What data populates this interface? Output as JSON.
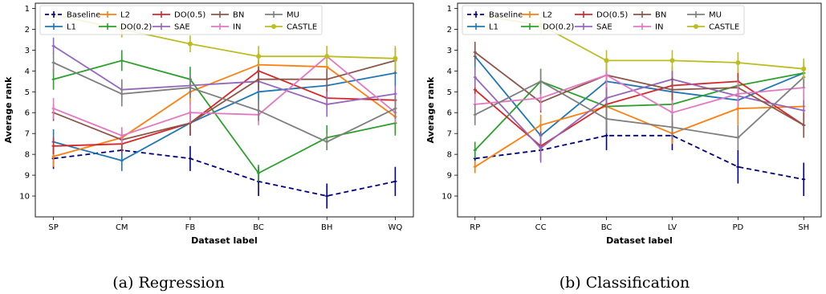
{
  "chart_data": [
    {
      "type": "line",
      "caption": "(a) Regression",
      "categories": [
        "SP",
        "CM",
        "FB",
        "BC",
        "BH",
        "WQ"
      ],
      "xlabel": "Dataset label",
      "ylabel": "Average rank",
      "ylim": [
        1,
        11
      ],
      "yticks": [
        1,
        2,
        3,
        4,
        5,
        6,
        7,
        8,
        9,
        10
      ],
      "y_inverted": true,
      "legend_position": "top",
      "series": [
        {
          "name": "Baseline",
          "color": "#000080",
          "dashed": true,
          "values": [
            8.2,
            7.8,
            8.2,
            9.3,
            10.0,
            9.3
          ],
          "err": [
            0.5,
            0.4,
            0.6,
            0.7,
            0.6,
            0.7
          ]
        },
        {
          "name": "L1",
          "color": "#1f77b4",
          "values": [
            7.4,
            8.3,
            6.5,
            5.0,
            4.7,
            4.1
          ],
          "err": [
            0.6,
            0.5,
            0.6,
            0.6,
            0.5,
            0.6
          ]
        },
        {
          "name": "L2",
          "color": "#ff7f0e",
          "values": [
            8.1,
            7.2,
            5.0,
            3.7,
            3.8,
            6.2
          ],
          "err": [
            0.5,
            0.5,
            0.6,
            0.6,
            0.6,
            0.8
          ]
        },
        {
          "name": "DO(0.2)",
          "color": "#2ca02c",
          "values": [
            4.4,
            3.5,
            4.4,
            8.9,
            7.2,
            6.5
          ],
          "err": [
            0.5,
            0.5,
            0.6,
            0.4,
            0.6,
            0.6
          ]
        },
        {
          "name": "DO(0.5)",
          "color": "#d62728",
          "values": [
            7.6,
            7.5,
            6.5,
            4.0,
            5.3,
            5.4
          ],
          "err": [
            0.4,
            0.4,
            0.6,
            0.5,
            0.5,
            0.4
          ]
        },
        {
          "name": "SAE",
          "color": "#9467bd",
          "values": [
            2.8,
            4.9,
            4.7,
            4.5,
            5.6,
            5.1
          ],
          "err": [
            0.4,
            0.5,
            0.5,
            0.5,
            0.6,
            0.4
          ]
        },
        {
          "name": "BN",
          "color": "#8c564b",
          "values": [
            6.0,
            7.3,
            6.5,
            4.4,
            4.4,
            3.5
          ],
          "err": [
            0.4,
            0.4,
            0.5,
            0.5,
            0.5,
            0.6
          ]
        },
        {
          "name": "IN",
          "color": "#e377c2",
          "values": [
            5.8,
            7.1,
            6.0,
            6.1,
            3.3,
            6.0
          ],
          "err": [
            0.5,
            0.4,
            0.5,
            0.5,
            0.5,
            0.5
          ]
        },
        {
          "name": "MU",
          "color": "#7f7f7f",
          "values": [
            3.6,
            5.1,
            4.8,
            5.9,
            7.4,
            5.8
          ],
          "err": [
            0.5,
            0.6,
            0.5,
            0.5,
            0.4,
            0.5
          ]
        },
        {
          "name": "CASTLE",
          "color": "#bcbd22",
          "values": [
            1.3,
            2.0,
            2.7,
            3.3,
            3.3,
            3.4
          ],
          "err": [
            0.3,
            0.4,
            0.4,
            0.5,
            0.5,
            0.6
          ]
        }
      ]
    },
    {
      "type": "line",
      "caption": "(b) Classification",
      "categories": [
        "RP",
        "CC",
        "BC",
        "LV",
        "PD",
        "SH"
      ],
      "xlabel": "Dataset label",
      "ylabel": "Average rank",
      "ylim": [
        1,
        11
      ],
      "yticks": [
        1,
        2,
        3,
        4,
        5,
        6,
        7,
        8,
        9,
        10
      ],
      "y_inverted": true,
      "legend_position": "top",
      "series": [
        {
          "name": "Baseline",
          "color": "#000080",
          "dashed": true,
          "values": [
            8.2,
            7.8,
            7.1,
            7.1,
            8.6,
            9.2
          ],
          "err": [
            0.4,
            0.5,
            0.7,
            0.7,
            0.8,
            0.8
          ]
        },
        {
          "name": "L1",
          "color": "#1f77b4",
          "values": [
            3.3,
            7.1,
            4.5,
            5.0,
            5.4,
            4.1
          ],
          "err": [
            0.6,
            0.5,
            0.6,
            0.6,
            0.5,
            0.5
          ]
        },
        {
          "name": "L2",
          "color": "#ff7f0e",
          "values": [
            8.6,
            6.6,
            5.7,
            7.0,
            5.8,
            5.7
          ],
          "err": [
            0.3,
            0.5,
            0.5,
            0.5,
            0.8,
            0.6
          ]
        },
        {
          "name": "DO(0.2)",
          "color": "#2ca02c",
          "values": [
            7.8,
            4.5,
            5.7,
            5.6,
            4.7,
            4.1
          ],
          "err": [
            0.4,
            0.6,
            0.6,
            0.5,
            0.6,
            0.6
          ]
        },
        {
          "name": "DO(0.5)",
          "color": "#d62728",
          "values": [
            4.9,
            7.6,
            5.6,
            4.7,
            4.5,
            6.6
          ],
          "err": [
            0.5,
            0.7,
            0.8,
            0.7,
            0.6,
            0.6
          ]
        },
        {
          "name": "SAE",
          "color": "#9467bd",
          "values": [
            4.3,
            7.7,
            5.3,
            4.4,
            5.2,
            5.9
          ],
          "err": [
            0.5,
            0.7,
            0.7,
            0.6,
            0.5,
            0.5
          ]
        },
        {
          "name": "BN",
          "color": "#8c564b",
          "values": [
            3.1,
            5.5,
            4.2,
            4.9,
            4.8,
            6.6
          ],
          "err": [
            0.5,
            0.5,
            0.6,
            0.6,
            0.5,
            0.6
          ]
        },
        {
          "name": "IN",
          "color": "#e377c2",
          "values": [
            5.6,
            5.3,
            4.2,
            6.0,
            5.1,
            4.8
          ],
          "err": [
            0.5,
            0.6,
            0.6,
            0.6,
            0.6,
            0.6
          ]
        },
        {
          "name": "MU",
          "color": "#7f7f7f",
          "values": [
            6.1,
            4.5,
            6.3,
            6.7,
            7.2,
            4.3
          ],
          "err": [
            0.5,
            0.6,
            0.7,
            0.6,
            0.6,
            0.5
          ]
        },
        {
          "name": "CASTLE",
          "color": "#bcbd22",
          "values": [
            1.3,
            1.8,
            3.5,
            3.5,
            3.6,
            3.9
          ],
          "err": [
            0.3,
            0.4,
            0.5,
            0.5,
            0.5,
            0.5
          ]
        }
      ]
    }
  ]
}
